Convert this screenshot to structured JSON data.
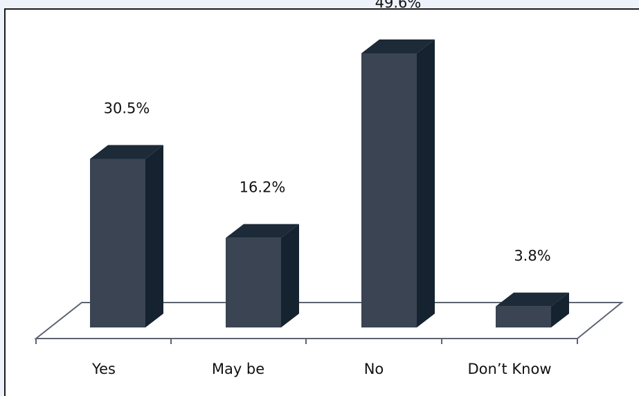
{
  "chart_data": {
    "type": "bar",
    "categories": [
      "Yes",
      "May be",
      "No",
      "Don’t Know"
    ],
    "values": [
      30.5,
      16.2,
      49.6,
      3.8
    ],
    "data_labels": [
      "30.5%",
      "16.2%",
      "49.6%",
      "3.8%"
    ],
    "title": "",
    "xlabel": "",
    "ylabel": "",
    "ylim": [
      0,
      50
    ],
    "grid": false,
    "legend": "none",
    "style": "3d-column",
    "colors": {
      "front": "#3a4453",
      "side": "#15222f",
      "top": "#1d2a38",
      "floor_line": "#5b6470"
    }
  }
}
